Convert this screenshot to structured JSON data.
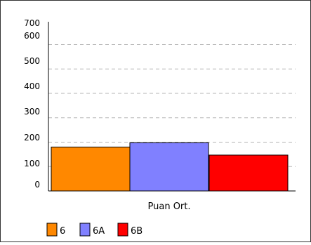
{
  "chart_data": {
    "type": "bar",
    "title": "",
    "xlabel": "",
    "ylabel": "",
    "categories": [
      "Puan Ort."
    ],
    "series": [
      {
        "name": "6",
        "values": [
          180
        ],
        "color": "#ff8800"
      },
      {
        "name": "6A",
        "values": [
          198
        ],
        "color": "#8080ff"
      },
      {
        "name": "6B",
        "values": [
          147
        ],
        "color": "#ff0000"
      }
    ],
    "yticks": [
      "0",
      "100",
      "200",
      "300",
      "400",
      "500",
      "600",
      "700"
    ],
    "ylim": [
      0,
      700
    ],
    "grid": true,
    "legend_position": "bottom-left"
  }
}
